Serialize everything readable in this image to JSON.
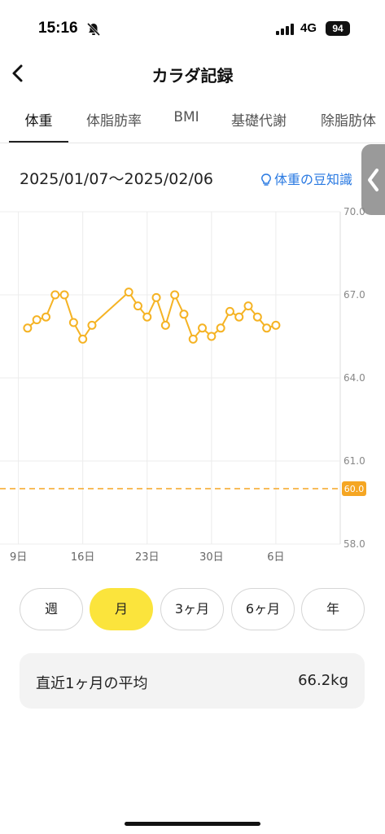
{
  "status_bar": {
    "time": "15:16",
    "network": "4G",
    "battery": "94"
  },
  "nav": {
    "title": "カラダ記録"
  },
  "tabs": [
    {
      "label": "体重",
      "active": true
    },
    {
      "label": "体脂肪率",
      "active": false
    },
    {
      "label": "BMI",
      "active": false
    },
    {
      "label": "基礎代謝",
      "active": false
    },
    {
      "label": "除脂肪体",
      "active": false
    }
  ],
  "header": {
    "date_range": "2025/01/07〜2025/02/06",
    "tip_link": "体重の豆知識"
  },
  "chart_data": {
    "type": "line",
    "y_ticks": [
      "70.0",
      "67.0",
      "64.0",
      "61.0",
      "58.0"
    ],
    "ylim": [
      58,
      70
    ],
    "x_ticks": [
      "9日",
      "16日",
      "23日",
      "30日",
      "6日"
    ],
    "x_tick_days": [
      0,
      7,
      14,
      21,
      28
    ],
    "x_range_days": [
      -2,
      35
    ],
    "target_line": {
      "value": 60.0,
      "label": "60.0",
      "color": "#f5a623"
    },
    "series": [
      {
        "color": "#f5b324",
        "points": [
          {
            "d": 1,
            "v": 65.8
          },
          {
            "d": 2,
            "v": 66.1
          },
          {
            "d": 3,
            "v": 66.2
          },
          {
            "d": 4,
            "v": 67.0
          },
          {
            "d": 5,
            "v": 67.0
          },
          {
            "d": 6,
            "v": 66.0
          },
          {
            "d": 7,
            "v": 65.4
          },
          {
            "d": 8,
            "v": 65.9
          },
          {
            "d": 12,
            "v": 67.1
          },
          {
            "d": 13,
            "v": 66.6
          },
          {
            "d": 14,
            "v": 66.2
          },
          {
            "d": 15,
            "v": 66.9
          },
          {
            "d": 16,
            "v": 65.9
          },
          {
            "d": 17,
            "v": 67.0
          },
          {
            "d": 18,
            "v": 66.3
          },
          {
            "d": 19,
            "v": 65.4
          },
          {
            "d": 20,
            "v": 65.8
          },
          {
            "d": 21,
            "v": 65.5
          },
          {
            "d": 22,
            "v": 65.8
          },
          {
            "d": 23,
            "v": 66.4
          },
          {
            "d": 24,
            "v": 66.2
          },
          {
            "d": 25,
            "v": 66.6
          },
          {
            "d": 26,
            "v": 66.2
          },
          {
            "d": 27,
            "v": 65.8
          },
          {
            "d": 28,
            "v": 65.9
          }
        ]
      }
    ]
  },
  "period_buttons": [
    {
      "label": "週",
      "active": false
    },
    {
      "label": "月",
      "active": true
    },
    {
      "label": "3ヶ月",
      "active": false
    },
    {
      "label": "6ヶ月",
      "active": false
    },
    {
      "label": "年",
      "active": false
    }
  ],
  "average": {
    "label": "直近1ヶ月の平均",
    "value": "66.2kg"
  },
  "colors": {
    "accent": "#fbe43c",
    "line": "#f5b324",
    "link": "#2a7ae2",
    "target": "#f5a623"
  }
}
